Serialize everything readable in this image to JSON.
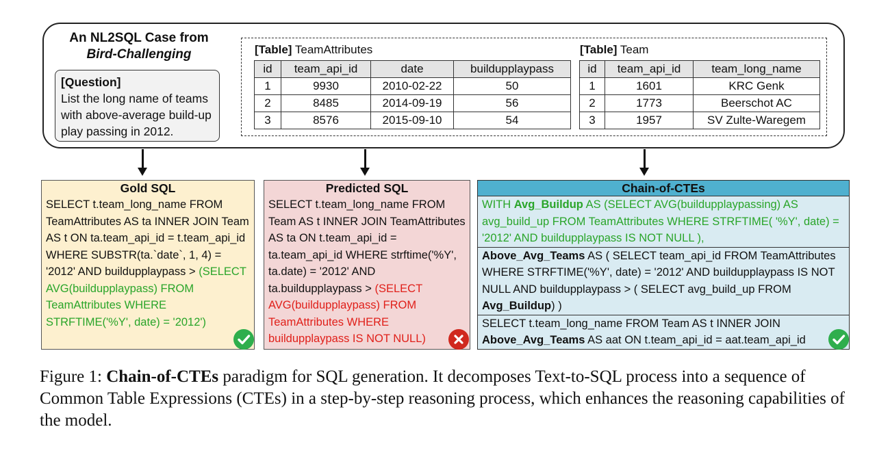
{
  "case": {
    "title_line1": "An NL2SQL Case from",
    "title_line2": "Bird-Challenging",
    "question_label": "[Question]",
    "question_text": "List the long name of teams with above-average build-up play passing in 2012."
  },
  "table_attr": {
    "tag": "[Table]",
    "name": "TeamAttributes",
    "columns": [
      "id",
      "team_api_id",
      "date",
      "buildupplaypass"
    ],
    "rows": [
      [
        "1",
        "9930",
        "2010-02-22",
        "50"
      ],
      [
        "2",
        "8485",
        "2014-09-19",
        "56"
      ],
      [
        "3",
        "8576",
        "2015-09-10",
        "54"
      ]
    ]
  },
  "table_team": {
    "tag": "[Table]",
    "name": "Team",
    "columns": [
      "id",
      "team_api_id",
      "team_long_name"
    ],
    "rows": [
      [
        "1",
        "1601",
        "KRC Genk"
      ],
      [
        "2",
        "1773",
        "Beerschot AC"
      ],
      [
        "3",
        "1957",
        "SV Zulte-Waregem"
      ]
    ]
  },
  "gold": {
    "title": "Gold SQL",
    "text_main": "SELECT t.team_long_name FROM TeamAttributes AS ta INNER JOIN Team AS t ON ta.team_api_id = t.team_api_id WHERE SUBSTR(ta.`date`, 1, 4) = '2012' AND buildupplaypass > ",
    "text_highlight": "(SELECT AVG(buildupplaypass) FROM TeamAttributes WHERE STRFTIME('%Y', date) = '2012')",
    "badge": "check-icon"
  },
  "predicted": {
    "title": "Predicted SQL",
    "text_main": "SELECT t.team_long_name FROM Team AS t INNER JOIN TeamAttributes AS ta ON t.team_api_id = ta.team_api_id WHERE strftime('%Y', ta.date) = '2012' AND ta.buildupplaypass > ",
    "text_highlight": "(SELECT AVG(buildupplaypass) FROM TeamAttributes WHERE buildupplaypass IS NOT NULL)",
    "badge": "cross-icon"
  },
  "chain": {
    "title": "Chain-of-CTEs",
    "s1_pre": "WITH ",
    "s1_bold": "Avg_Buildup",
    "s1_post": " AS (SELECT AVG(buildupplaypassing) AS avg_build_up FROM TeamAttributes WHERE STRFTIME( '%Y', date) = '2012' AND buildupplaypass IS NOT NULL ),",
    "s2_bold": "Above_Avg_Teams",
    "s2_mid": " AS ( SELECT team_api_id FROM TeamAttributes WHERE STRFTIME('%Y', date) = '2012' AND buildupplaypass IS NOT NULL AND buildupplaypass > ( SELECT avg_build_up FROM ",
    "s2_bold2": "Avg_Buildup",
    "s2_post": ") )",
    "s3_pre": "SELECT t.team_long_name FROM Team AS t INNER JOIN ",
    "s3_bold": "Above_Avg_Teams",
    "s3_post": " AS aat ON t.team_api_id = aat.team_api_id",
    "badge": "check-icon"
  },
  "caption": {
    "prefix": "Figure 1: ",
    "bold": "Chain-of-CTEs",
    "rest": " paradigm for SQL generation. It decomposes Text-to-SQL process into a sequence of Common Table Expressions (CTEs) in a step-by-step reasoning process, which enhances the reasoning capabilities of the model."
  },
  "colors": {
    "gold_bg": "#fdf0cf",
    "pred_bg": "#f3d6d6",
    "chain_bg": "#d9ebf2",
    "chain_header": "#4fb0cf",
    "green_text": "#2aa52a",
    "red_text": "#e0201a",
    "check_badge": "#2fae4d",
    "cross_badge": "#d0281e"
  }
}
